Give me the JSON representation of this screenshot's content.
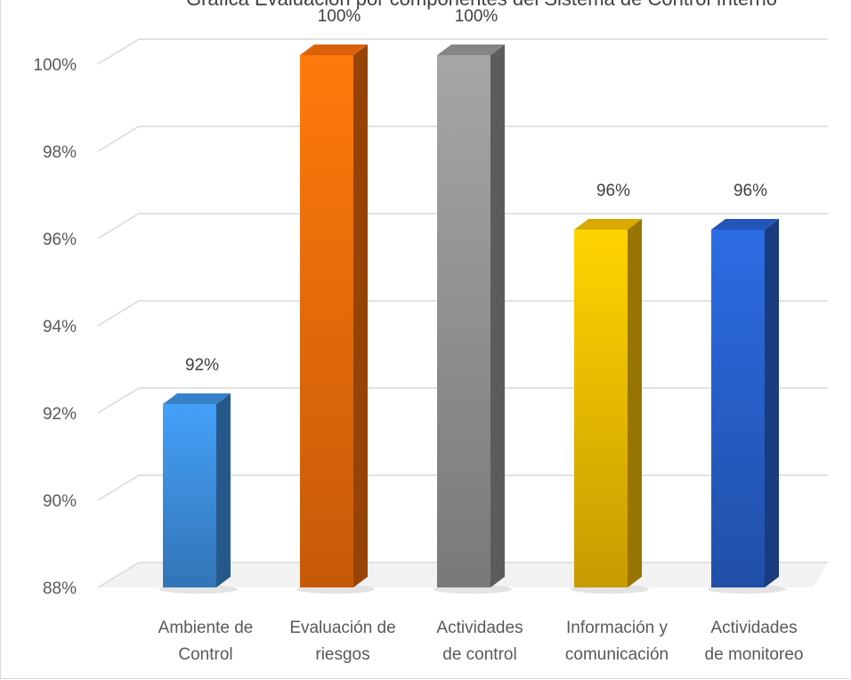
{
  "chart_data": {
    "type": "bar",
    "title": "Gráfica Evaluación por componentes del Sistema de Control Interno",
    "categories": [
      [
        "Ambiente de",
        "Control"
      ],
      [
        "Evaluación de",
        "riesgos"
      ],
      [
        "Actividades",
        "de control"
      ],
      [
        "Información y",
        "comunicación"
      ],
      [
        "Actividades",
        "de monitoreo"
      ]
    ],
    "values": [
      92,
      100,
      100,
      96,
      96
    ],
    "data_labels": [
      "92%",
      "100%",
      "100%",
      "96%",
      "96%"
    ],
    "ylim": [
      88,
      100
    ],
    "yticks": [
      88,
      90,
      92,
      94,
      96,
      98,
      100
    ],
    "ytick_labels": [
      "88%",
      "90%",
      "92%",
      "94%",
      "96%",
      "98%",
      "100%"
    ],
    "xlabel": "",
    "ylabel": "",
    "grid": true,
    "legend": "none",
    "style": "3d-column",
    "colors": [
      "#3d8fde",
      "#f26d0a",
      "#949494",
      "#f3bd00",
      "#2760cc"
    ]
  }
}
